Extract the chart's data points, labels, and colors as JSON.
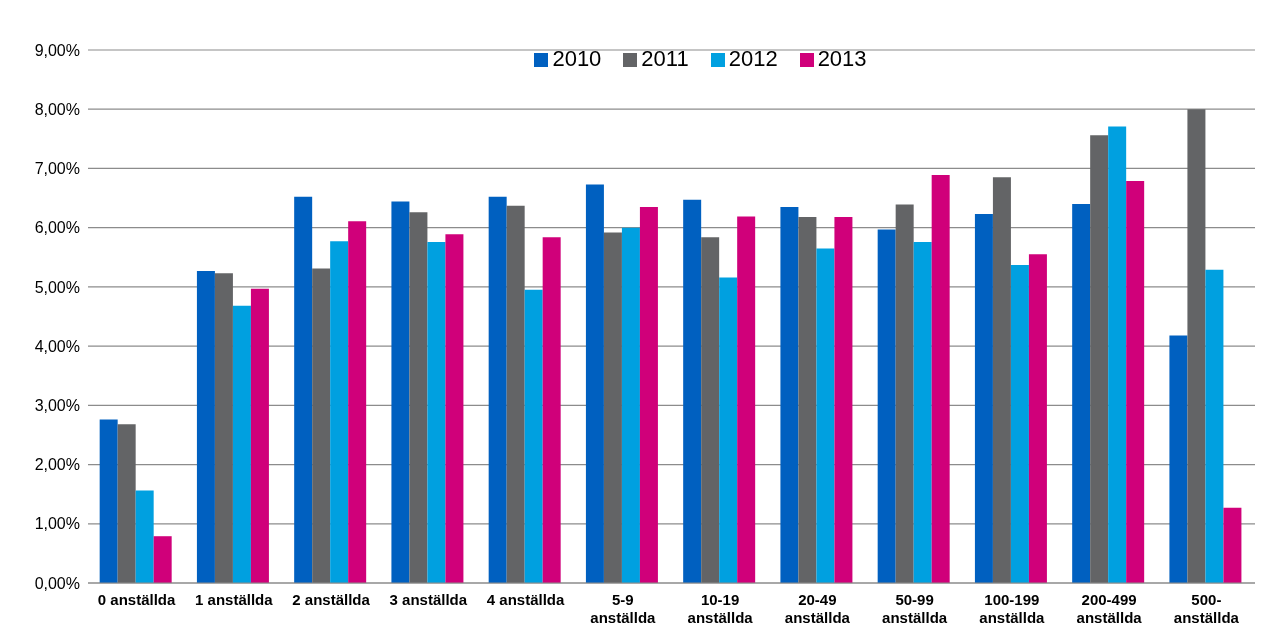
{
  "chart_data": {
    "type": "bar",
    "categories": [
      "0 anställda",
      "1 anställda",
      "2 anställda",
      "3 anställda",
      "4 anställda",
      "5-9 anställda",
      "10-19 anställda",
      "20-49 anställda",
      "50-99 anställda",
      "100-199 anställda",
      "200-499 anställda",
      "500- anställda"
    ],
    "series": [
      {
        "name": "2010",
        "color": "#0060c0",
        "values": [
          2.76,
          5.27,
          6.52,
          6.44,
          6.52,
          6.73,
          6.47,
          6.35,
          5.97,
          6.23,
          6.4,
          4.18
        ]
      },
      {
        "name": "2011",
        "color": "#636466",
        "values": [
          2.68,
          5.23,
          5.31,
          6.26,
          6.37,
          5.92,
          5.84,
          6.18,
          6.39,
          6.85,
          7.56,
          8.0
        ]
      },
      {
        "name": "2012",
        "color": "#00a0e0",
        "values": [
          1.56,
          4.68,
          5.77,
          5.76,
          4.95,
          6.0,
          5.16,
          5.65,
          5.76,
          5.37,
          7.71,
          5.29
        ]
      },
      {
        "name": "2013",
        "color": "#d0007a",
        "values": [
          0.79,
          4.97,
          6.11,
          5.89,
          5.84,
          6.35,
          6.19,
          6.18,
          6.89,
          5.55,
          6.79,
          1.27
        ]
      }
    ],
    "ylim": [
      0,
      9
    ],
    "yticks": [
      {
        "value": 0,
        "label": "0,00%"
      },
      {
        "value": 1,
        "label": "1,00%"
      },
      {
        "value": 2,
        "label": "2,00%"
      },
      {
        "value": 3,
        "label": "3,00%"
      },
      {
        "value": 4,
        "label": "4,00%"
      },
      {
        "value": 5,
        "label": "5,00%"
      },
      {
        "value": 6,
        "label": "6,00%"
      },
      {
        "value": 7,
        "label": "7,00%"
      },
      {
        "value": 8,
        "label": "8,00%"
      },
      {
        "value": 9,
        "label": "9,00%"
      }
    ],
    "grid": "y",
    "legend": "top"
  }
}
